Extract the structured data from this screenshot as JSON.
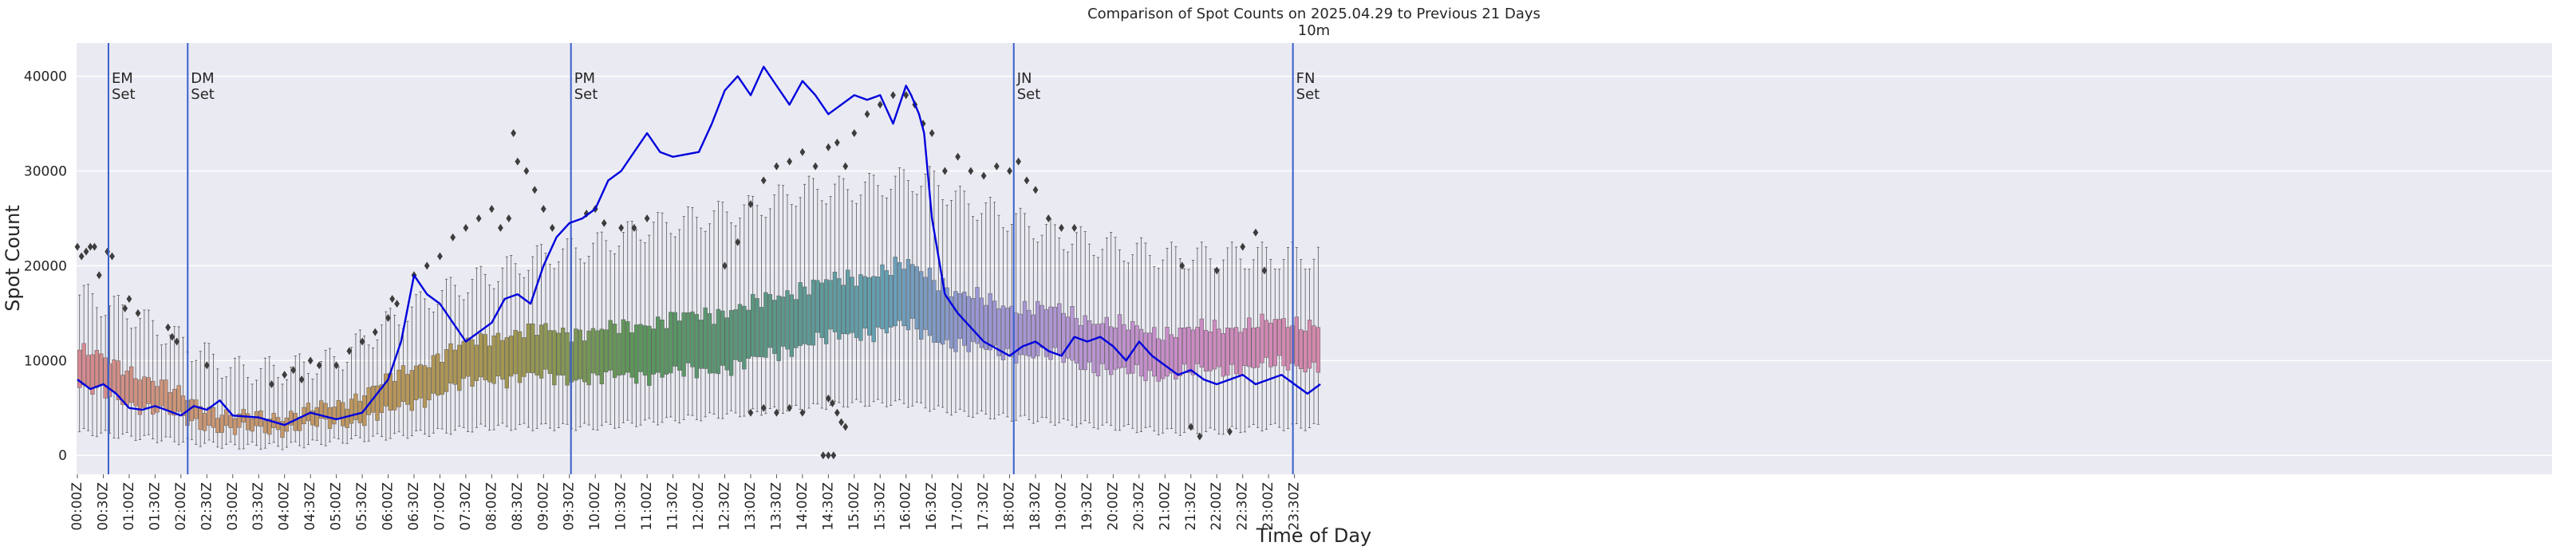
{
  "chart_data": {
    "type": "box",
    "title": "Comparison of Spot Counts on 2025.04.29 to Previous 21 Days",
    "subtitle": "10m",
    "xlabel": "Time of Day",
    "ylabel": "Spot Count",
    "ylim": [
      -2000,
      43500
    ],
    "yticks": [
      0,
      10000,
      20000,
      30000,
      40000
    ],
    "xticks": [
      "00:00Z",
      "00:30Z",
      "01:00Z",
      "01:30Z",
      "02:00Z",
      "02:30Z",
      "03:00Z",
      "03:30Z",
      "04:00Z",
      "04:30Z",
      "05:00Z",
      "05:30Z",
      "06:00Z",
      "06:30Z",
      "07:00Z",
      "07:30Z",
      "08:00Z",
      "08:30Z",
      "09:00Z",
      "09:30Z",
      "10:00Z",
      "10:30Z",
      "11:00Z",
      "11:30Z",
      "12:00Z",
      "12:30Z",
      "13:00Z",
      "13:30Z",
      "14:00Z",
      "14:30Z",
      "15:00Z",
      "15:30Z",
      "16:00Z",
      "16:30Z",
      "17:00Z",
      "17:30Z",
      "18:00Z",
      "18:30Z",
      "19:00Z",
      "19:30Z",
      "20:00Z",
      "20:30Z",
      "21:00Z",
      "21:30Z",
      "22:00Z",
      "22:30Z",
      "23:00Z",
      "23:30Z"
    ],
    "minutes_per_box": 5,
    "box_profile_time_hours": [
      0,
      1,
      2,
      3,
      4,
      5,
      6,
      7,
      8,
      9,
      10,
      11,
      12,
      13,
      14,
      15,
      16,
      16.5,
      17,
      18,
      19,
      20,
      21,
      22,
      23,
      24
    ],
    "box_profile_median": [
      9000,
      7200,
      5000,
      3200,
      3500,
      4200,
      6000,
      8500,
      10200,
      10500,
      10300,
      11000,
      11500,
      12500,
      14500,
      15500,
      16500,
      15500,
      14000,
      13000,
      12500,
      11000,
      10500,
      11000,
      11500,
      11500
    ],
    "box_profile_iqr": [
      4000,
      3500,
      2500,
      1500,
      1500,
      2000,
      3500,
      4000,
      4500,
      5000,
      5000,
      5500,
      6000,
      6000,
      6000,
      6000,
      6500,
      6500,
      5500,
      5000,
      5000,
      5000,
      4500,
      4500,
      4500,
      4500
    ],
    "box_profile_whisker_low": [
      2500,
      2000,
      1500,
      1000,
      1000,
      1500,
      2000,
      2500,
      3000,
      3000,
      3000,
      3500,
      4000,
      4500,
      5000,
      5500,
      5500,
      5000,
      4500,
      4000,
      3500,
      3000,
      2500,
      2500,
      3000,
      3000
    ],
    "box_profile_whisker_high": [
      17000,
      15000,
      12000,
      9000,
      9000,
      10000,
      14000,
      17000,
      19000,
      21000,
      22000,
      24000,
      25000,
      26000,
      28000,
      28000,
      29000,
      29000,
      27000,
      25000,
      23000,
      22000,
      21000,
      21000,
      21000,
      21000
    ],
    "series": [
      {
        "name": "2025.04.29",
        "time_hours": [
          0,
          0.25,
          0.5,
          0.75,
          1,
          1.25,
          1.5,
          1.75,
          2,
          2.25,
          2.5,
          2.75,
          3,
          3.5,
          4,
          4.5,
          5,
          5.5,
          6,
          6.25,
          6.5,
          6.75,
          7,
          7.5,
          8,
          8.25,
          8.5,
          8.75,
          9,
          9.25,
          9.5,
          9.75,
          10,
          10.25,
          10.5,
          10.75,
          11,
          11.25,
          11.5,
          12,
          12.25,
          12.5,
          12.75,
          13,
          13.25,
          13.5,
          13.75,
          14,
          14.25,
          14.5,
          14.75,
          15,
          15.25,
          15.5,
          15.75,
          16,
          16.1,
          16.25,
          16.35,
          16.5,
          16.75,
          17,
          17.5,
          18,
          18.25,
          18.5,
          18.75,
          19,
          19.25,
          19.5,
          19.75,
          20,
          20.25,
          20.5,
          20.75,
          21,
          21.25,
          21.5,
          21.75,
          22,
          22.25,
          22.5,
          22.75,
          23,
          23.25,
          23.5,
          23.75,
          24
        ],
        "values": [
          8000,
          7000,
          7500,
          6500,
          5000,
          4800,
          5200,
          4700,
          4200,
          5200,
          4800,
          5800,
          4200,
          4000,
          3200,
          4500,
          3800,
          4500,
          8000,
          12000,
          19000,
          17000,
          16000,
          12000,
          14000,
          16500,
          17000,
          16000,
          20000,
          23000,
          24500,
          25000,
          26000,
          29000,
          30000,
          32000,
          34000,
          32000,
          31500,
          32000,
          35000,
          38500,
          40000,
          38000,
          41000,
          39000,
          37000,
          39500,
          38000,
          36000,
          37000,
          38000,
          37500,
          38000,
          35000,
          39000,
          38000,
          36000,
          34000,
          25000,
          17000,
          15000,
          12000,
          10500,
          11500,
          12000,
          11000,
          10500,
          12500,
          12000,
          12500,
          11500,
          10000,
          12000,
          10500,
          9500,
          8500,
          9000,
          8000,
          7500,
          8000,
          8500,
          7500,
          8000,
          8500,
          7500,
          6500,
          7500
        ]
      }
    ],
    "vlines": [
      {
        "name": "em-set",
        "label": "EM\nSet",
        "time_hours": 0.6
      },
      {
        "name": "dm-set",
        "label": "DM\nSet",
        "time_hours": 2.13
      },
      {
        "name": "pm-set",
        "label": "PM\nSet",
        "time_hours": 9.53
      },
      {
        "name": "jn-set",
        "label": "JN\nSet",
        "time_hours": 18.08
      },
      {
        "name": "fn-set",
        "label": "FN\nSet",
        "time_hours": 23.47
      }
    ],
    "vlines_text": [
      "EM Set",
      "DM Set",
      "PM Set",
      "JN Set",
      "FN Set"
    ],
    "outlier_groups": [
      {
        "time_hours": [
          0,
          0.08,
          0.17,
          0.25,
          0.33,
          0.42,
          0.58,
          0.67
        ],
        "values": [
          22000,
          21000,
          21500,
          22000,
          22000,
          19000,
          21500,
          21000
        ]
      },
      {
        "time_hours": [
          0.92,
          1.0,
          1.17,
          1.75,
          1.83,
          1.92,
          2.5
        ],
        "values": [
          15500,
          16500,
          15000,
          13500,
          12500,
          12000,
          9500
        ]
      },
      {
        "time_hours": [
          3.75,
          4.0,
          4.17,
          4.33,
          4.5,
          4.67,
          5.0,
          5.25,
          5.5,
          5.75,
          6.0,
          6.08,
          6.17
        ],
        "values": [
          7500,
          8500,
          9000,
          8000,
          10000,
          9500,
          9500,
          11000,
          12000,
          13000,
          14500,
          16500,
          16000
        ]
      },
      {
        "time_hours": [
          6.5,
          6.75,
          7.0,
          7.25,
          7.5,
          7.75,
          8.0,
          8.17,
          8.33,
          8.42,
          8.5,
          8.67,
          8.83,
          9.0,
          9.17
        ],
        "values": [
          19000,
          20000,
          21000,
          23000,
          24000,
          25000,
          26000,
          24000,
          25000,
          34000,
          31000,
          30000,
          28000,
          26000,
          24000
        ]
      },
      {
        "time_hours": [
          9.83,
          10.0,
          10.17,
          10.5,
          10.75,
          11.0
        ],
        "values": [
          25500,
          26000,
          24500,
          24000,
          24000,
          25000
        ]
      },
      {
        "time_hours": [
          12.5,
          12.75,
          13.0,
          13.25,
          13.5,
          13.75,
          14.0,
          14.25,
          14.5,
          14.67,
          14.83,
          15.0,
          15.25,
          15.5,
          15.75
        ],
        "values": [
          20000,
          22500,
          26500,
          29000,
          30500,
          31000,
          32000,
          30500,
          32500,
          33000,
          30500,
          34000,
          36000,
          37000,
          38000
        ]
      },
      {
        "time_hours": [
          14.5,
          14.58,
          14.67,
          14.75,
          14.83
        ],
        "values": [
          6000,
          5500,
          4500,
          3500,
          3000
        ]
      },
      {
        "time_hours": [
          14.4,
          14.5,
          14.6
        ],
        "values": [
          0,
          0,
          0
        ]
      },
      {
        "time_hours": [
          16.0,
          16.17,
          16.33,
          16.5,
          16.75,
          17.0,
          17.25,
          17.5,
          17.75,
          18.0,
          18.17,
          18.33,
          18.5,
          18.75,
          19.0,
          19.25
        ],
        "values": [
          38000,
          37000,
          35000,
          34000,
          30000,
          31500,
          30000,
          29500,
          30500,
          30000,
          31000,
          29000,
          28000,
          25000,
          24000,
          24000
        ]
      },
      {
        "time_hours": [
          21.33,
          21.5,
          21.67,
          22.0,
          22.25,
          22.5,
          22.75,
          22.92
        ],
        "values": [
          20000,
          3000,
          2000,
          19500,
          2500,
          22000,
          23500,
          19500
        ]
      },
      {
        "time_hours": [
          13.0,
          13.25,
          13.5,
          13.75,
          14.0
        ],
        "values": [
          4500,
          5000,
          4500,
          5000,
          4500
        ]
      }
    ]
  }
}
